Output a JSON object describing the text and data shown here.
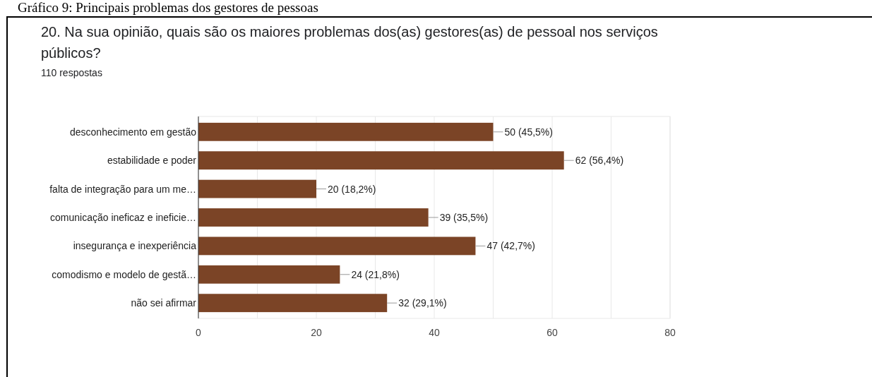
{
  "chart_data": {
    "type": "bar",
    "orientation": "horizontal",
    "title": "20. Na sua opinião, quais são os maiores problemas dos(as) gestores(as) de pessoal nos serviços públicos?",
    "subtitle": "110 respostas",
    "annotations": [
      "Gráfico 9: Principais problemas dos gestores de pessoas"
    ],
    "categories": [
      "desconhecimento em gestão",
      "estabilidade e poder",
      "falta de integração para um me…",
      "comunicação ineficaz e ineficie…",
      "insegurança e inexperiência",
      "comodismo e modelo de gestã…",
      "não sei afirmar"
    ],
    "values": [
      50,
      62,
      20,
      39,
      47,
      24,
      32
    ],
    "value_labels": [
      "50 (45,5%)",
      "62 (56,4%)",
      "20 (18,2%)",
      "39 (35,5%)",
      "47 (42,7%)",
      "24 (21,8%)",
      "32 (29,1%)"
    ],
    "color": "#7b4426",
    "xlim": [
      0,
      80
    ],
    "xticks": [
      0,
      {
        "value": 10,
        "label": null
      },
      20,
      {
        "value": 30,
        "label": null
      },
      40,
      {
        "value": 50,
        "label": null
      },
      60,
      {
        "value": 70,
        "label": null
      },
      80
    ],
    "grid": true
  }
}
